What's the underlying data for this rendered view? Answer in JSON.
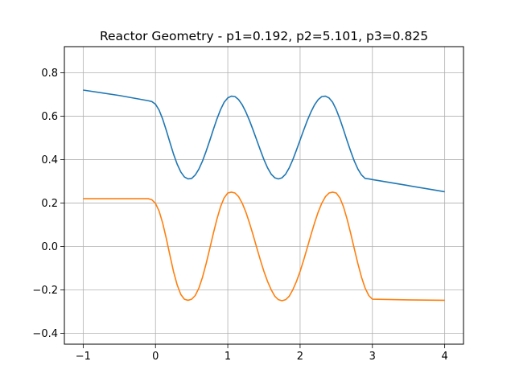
{
  "chart_data": {
    "type": "line",
    "title": "Reactor Geometry - p1=0.192, p2=5.101, p3=0.825",
    "xlabel": "",
    "ylabel": "",
    "xlim": [
      -1.26,
      4.26
    ],
    "ylim": [
      -0.45,
      0.92
    ],
    "xticks": [
      -1,
      0,
      1,
      2,
      3,
      4
    ],
    "xtick_labels": [
      "−1",
      "0",
      "1",
      "2",
      "3",
      "4"
    ],
    "yticks": [
      -0.4,
      -0.2,
      0.0,
      0.2,
      0.4,
      0.6,
      0.8
    ],
    "ytick_labels": [
      "−0.4",
      "−0.2",
      "0.0",
      "0.2",
      "0.4",
      "0.6",
      "0.8"
    ],
    "grid": true,
    "legend": "none",
    "series": [
      {
        "color": "#1f77b4",
        "x": [
          -1.0,
          -0.5,
          -0.1,
          -0.05,
          0.0,
          0.05,
          0.1,
          0.15,
          0.2,
          0.25,
          0.3,
          0.35,
          0.4,
          0.45,
          0.5,
          0.55,
          0.6,
          0.65,
          0.7,
          0.75,
          0.8,
          0.85,
          0.9,
          0.95,
          1.0,
          1.05,
          1.1,
          1.15,
          1.2,
          1.25,
          1.3,
          1.35,
          1.4,
          1.45,
          1.5,
          1.55,
          1.6,
          1.65,
          1.7,
          1.75,
          1.8,
          1.85,
          1.9,
          1.95,
          2.0,
          2.05,
          2.1,
          2.15,
          2.2,
          2.25,
          2.3,
          2.35,
          2.4,
          2.45,
          2.5,
          2.55,
          2.6,
          2.65,
          2.7,
          2.75,
          2.8,
          2.85,
          2.9,
          2.95,
          3.0,
          3.5,
          4.0
        ],
        "y": [
          0.72,
          0.695,
          0.671,
          0.667,
          0.655,
          0.628,
          0.586,
          0.534,
          0.479,
          0.425,
          0.379,
          0.343,
          0.32,
          0.311,
          0.313,
          0.329,
          0.356,
          0.393,
          0.438,
          0.487,
          0.538,
          0.587,
          0.63,
          0.664,
          0.684,
          0.692,
          0.69,
          0.676,
          0.652,
          0.619,
          0.58,
          0.536,
          0.49,
          0.444,
          0.4,
          0.362,
          0.333,
          0.316,
          0.311,
          0.316,
          0.333,
          0.362,
          0.4,
          0.444,
          0.49,
          0.536,
          0.58,
          0.619,
          0.652,
          0.676,
          0.69,
          0.692,
          0.684,
          0.664,
          0.63,
          0.587,
          0.538,
          0.487,
          0.438,
          0.393,
          0.356,
          0.329,
          0.313,
          0.311,
          0.308,
          0.28,
          0.252
        ]
      },
      {
        "color": "#ff7f0e",
        "x": [
          -1.0,
          -0.5,
          -0.1,
          -0.05,
          0.0,
          0.05,
          0.1,
          0.15,
          0.2,
          0.25,
          0.3,
          0.35,
          0.4,
          0.45,
          0.5,
          0.55,
          0.6,
          0.65,
          0.7,
          0.75,
          0.8,
          0.85,
          0.9,
          0.95,
          1.0,
          1.05,
          1.1,
          1.15,
          1.2,
          1.25,
          1.3,
          1.35,
          1.4,
          1.45,
          1.5,
          1.55,
          1.6,
          1.65,
          1.7,
          1.75,
          1.8,
          1.85,
          1.9,
          1.95,
          2.0,
          2.05,
          2.1,
          2.15,
          2.2,
          2.25,
          2.3,
          2.35,
          2.4,
          2.45,
          2.5,
          2.55,
          2.6,
          2.65,
          2.7,
          2.75,
          2.8,
          2.85,
          2.9,
          2.95,
          3.0,
          3.5,
          4.0
        ],
        "y": [
          0.22,
          0.22,
          0.22,
          0.215,
          0.198,
          0.163,
          0.107,
          0.036,
          -0.041,
          -0.116,
          -0.177,
          -0.221,
          -0.243,
          -0.248,
          -0.243,
          -0.226,
          -0.192,
          -0.142,
          -0.08,
          -0.011,
          0.06,
          0.126,
          0.183,
          0.224,
          0.246,
          0.25,
          0.246,
          0.229,
          0.199,
          0.158,
          0.108,
          0.053,
          -0.005,
          -0.062,
          -0.115,
          -0.161,
          -0.199,
          -0.229,
          -0.245,
          -0.25,
          -0.245,
          -0.229,
          -0.199,
          -0.161,
          -0.115,
          -0.062,
          -0.005,
          0.053,
          0.108,
          0.158,
          0.199,
          0.229,
          0.246,
          0.25,
          0.246,
          0.224,
          0.183,
          0.126,
          0.06,
          -0.011,
          -0.08,
          -0.142,
          -0.192,
          -0.226,
          -0.243,
          -0.246,
          -0.248
        ]
      }
    ]
  }
}
